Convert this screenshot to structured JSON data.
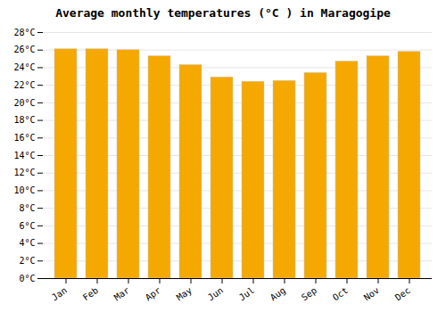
{
  "chart_data": {
    "type": "bar",
    "title": "Average monthly temperatures (°C ) in Maragogipe",
    "categories": [
      "Jan",
      "Feb",
      "Mar",
      "Apr",
      "May",
      "Jun",
      "Jul",
      "Aug",
      "Sep",
      "Oct",
      "Nov",
      "Dec"
    ],
    "values": [
      26.1,
      26.1,
      26.0,
      25.3,
      24.3,
      22.9,
      22.4,
      22.5,
      23.4,
      24.7,
      25.3,
      25.8
    ],
    "color": "#F5A800",
    "ylim": [
      0,
      28
    ],
    "yticks": [
      {
        "value": 0,
        "label": "0°C"
      },
      {
        "value": 2,
        "label": "2°C"
      },
      {
        "value": 4,
        "label": "4°C"
      },
      {
        "value": 6,
        "label": "6°C"
      },
      {
        "value": 8,
        "label": "8°C"
      },
      {
        "value": 10,
        "label": "10°C"
      },
      {
        "value": 12,
        "label": "12°C"
      },
      {
        "value": 14,
        "label": "14°C"
      },
      {
        "value": 16,
        "label": "16°C"
      },
      {
        "value": 18,
        "label": "18°C"
      },
      {
        "value": 20,
        "label": "20°C"
      },
      {
        "value": 22,
        "label": "22°C"
      },
      {
        "value": 24,
        "label": "24°C"
      },
      {
        "value": 26,
        "label": "26°C"
      },
      {
        "value": 28,
        "label": "28°C"
      }
    ],
    "grid": true
  }
}
